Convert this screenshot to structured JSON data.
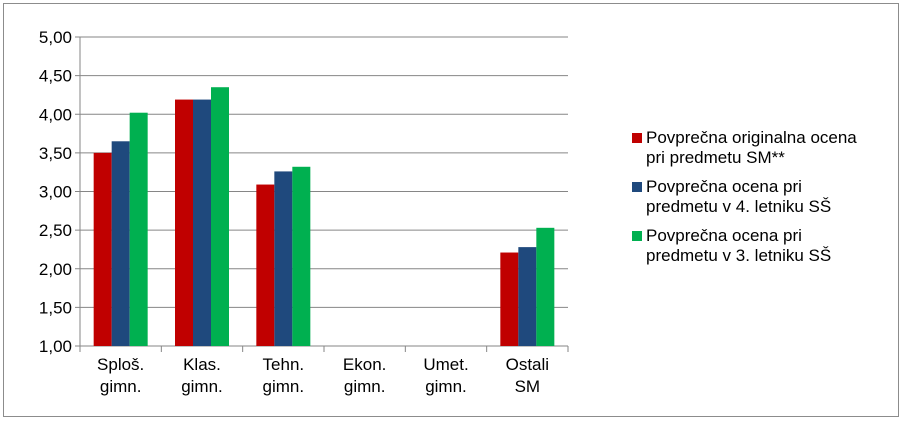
{
  "chart_data": {
    "type": "bar",
    "categories": [
      [
        "Sploš.",
        "gimn."
      ],
      [
        "Klas.",
        "gimn."
      ],
      [
        "Tehn.",
        "gimn."
      ],
      [
        "Ekon.",
        "gimn."
      ],
      [
        "Umet.",
        "gimn."
      ],
      [
        "Ostali",
        "SM"
      ]
    ],
    "series": [
      {
        "name": "Povprečna originalna ocena pri predmetu SM**",
        "color": "#c00000",
        "values": [
          3.5,
          4.19,
          3.09,
          null,
          null,
          2.21
        ]
      },
      {
        "name": "Povprečna ocena pri predmetu v 4. letniku SŠ",
        "color": "#1f497d",
        "values": [
          3.65,
          4.19,
          3.26,
          null,
          null,
          2.28
        ]
      },
      {
        "name": "Povprečna ocena pri predmetu v 3. letniku SŠ",
        "color": "#00b050",
        "values": [
          4.02,
          4.35,
          3.32,
          null,
          null,
          2.53
        ]
      }
    ],
    "ylim": [
      1.0,
      5.0
    ],
    "yticks": [
      "1,00",
      "1,50",
      "2,00",
      "2,50",
      "3,00",
      "3,50",
      "4,00",
      "4,50",
      "5,00"
    ],
    "ytick_values": [
      1.0,
      1.5,
      2.0,
      2.5,
      3.0,
      3.5,
      4.0,
      4.5,
      5.0
    ],
    "grid": true,
    "legend": "right"
  }
}
